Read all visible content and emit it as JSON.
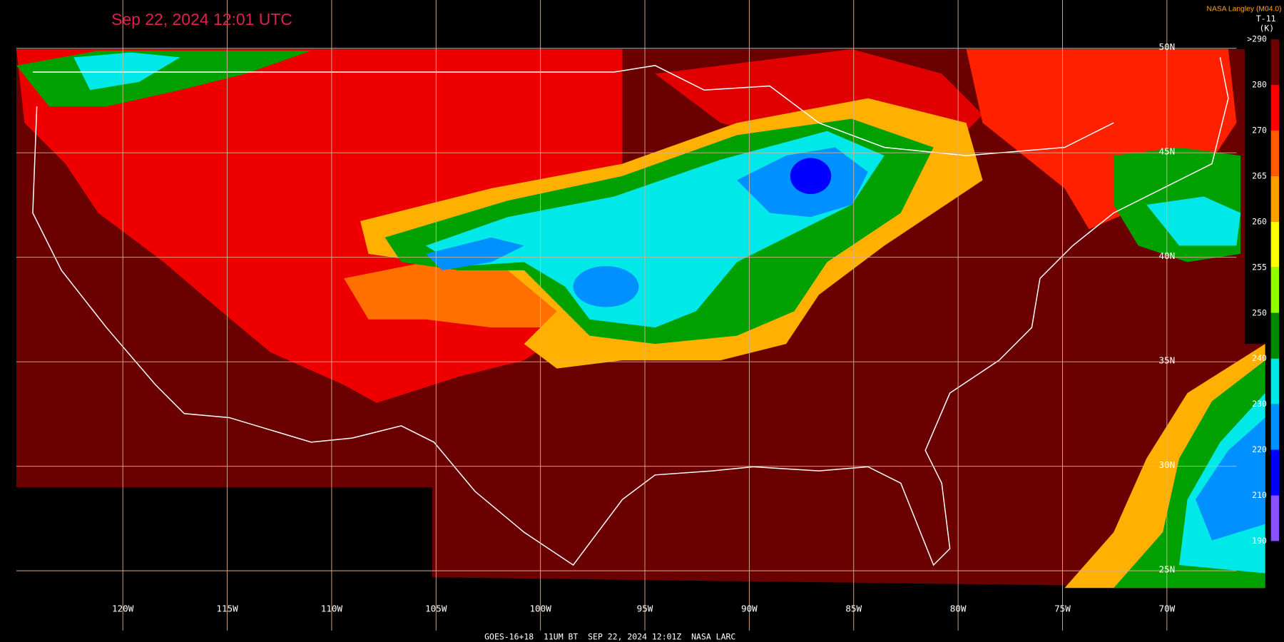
{
  "header": {
    "title": "Sep 22, 2024 12:01 UTC",
    "credit": "NASA Langley (M04.0)"
  },
  "colorbar": {
    "name": "T-11",
    "unit": "(K)",
    "labels": [
      ">290",
      "280",
      "270",
      "265",
      "260",
      "255",
      "250",
      "240",
      "230",
      "220",
      "210",
      "190"
    ],
    "colors": [
      "#6e0000",
      "#ff0000",
      "#ff5a00",
      "#ffa000",
      "#ffff00",
      "#90ff00",
      "#008800",
      "#00e8e8",
      "#0090ff",
      "#0000ff",
      "#8a50ff"
    ]
  },
  "grid": {
    "longitudes": [
      "120W",
      "115W",
      "110W",
      "105W",
      "100W",
      "95W",
      "90W",
      "85W",
      "80W",
      "75W",
      "70W"
    ],
    "latitudes": [
      "50N",
      "45N",
      "40N",
      "35N",
      "30N",
      "25N"
    ]
  },
  "footer": "GOES-16+18  11UM BT  SEP 22, 2024 12:01Z  NASA LARC"
}
